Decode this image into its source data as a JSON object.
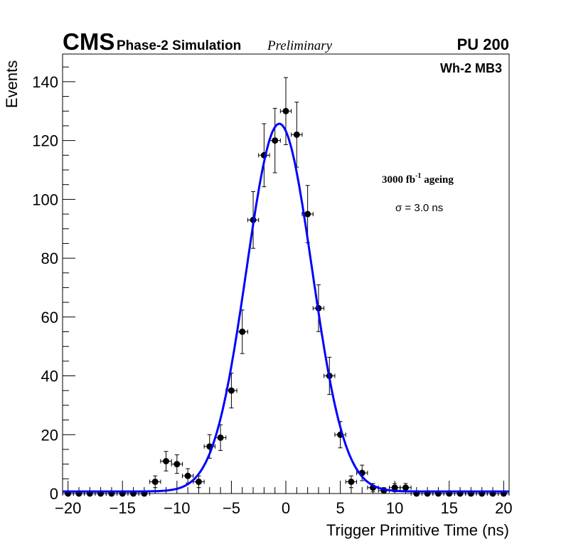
{
  "chart_data": {
    "type": "scatter",
    "title_cms": "CMS",
    "title_sub": "Phase-2 Simulation",
    "title_prelim": "Preliminary",
    "pileup": "PU 200",
    "region": "Wh-2 MB3",
    "annotation_lumi": "3000 fb",
    "annotation_lumi_sup": "-1",
    "annotation_lumi_suffix": " ageing",
    "annotation_sigma": "σ = 3.0 ns",
    "xlabel": "Trigger Primitive Time (ns)",
    "ylabel": "Events",
    "xlim": [
      -20.5,
      20.5
    ],
    "ylim": [
      0,
      149.4
    ],
    "xticks": [
      -20,
      -15,
      -10,
      -5,
      0,
      5,
      10,
      15,
      20
    ],
    "xtick_labels": [
      "−20",
      "−15",
      "−10",
      "−5",
      "0",
      "5",
      "10",
      "15",
      "20"
    ],
    "yticks": [
      0,
      20,
      40,
      60,
      80,
      100,
      120,
      140
    ],
    "ytick_labels": [
      "0",
      "20",
      "40",
      "60",
      "80",
      "100",
      "120",
      "140"
    ],
    "series": [
      {
        "name": "data",
        "x": [
          -20,
          -19,
          -18,
          -17,
          -16,
          -15,
          -14,
          -13,
          -12,
          -11,
          -10,
          -9,
          -8,
          -7,
          -6,
          -5,
          -4,
          -3,
          -2,
          -1,
          0,
          1,
          2,
          3,
          4,
          5,
          6,
          7,
          8,
          9,
          10,
          11,
          12,
          13,
          14,
          15,
          16,
          17,
          18,
          19,
          20
        ],
        "y": [
          0,
          0,
          0,
          0,
          0,
          0,
          0,
          0,
          4,
          11,
          10,
          6,
          4,
          16,
          19,
          35,
          55,
          93,
          115,
          120,
          130,
          122,
          95,
          63,
          40,
          20,
          4,
          7,
          2,
          1,
          2,
          2,
          0,
          0,
          0,
          0,
          0,
          0,
          0,
          0,
          0
        ],
        "errors": "sqrt(N)",
        "color": "#000000"
      },
      {
        "name": "gaussian fit",
        "function": "gaus+const",
        "amplitude": 125,
        "mean": -0.6,
        "sigma": 3.0,
        "constant": 0.7,
        "color": "#0000ff"
      }
    ]
  }
}
